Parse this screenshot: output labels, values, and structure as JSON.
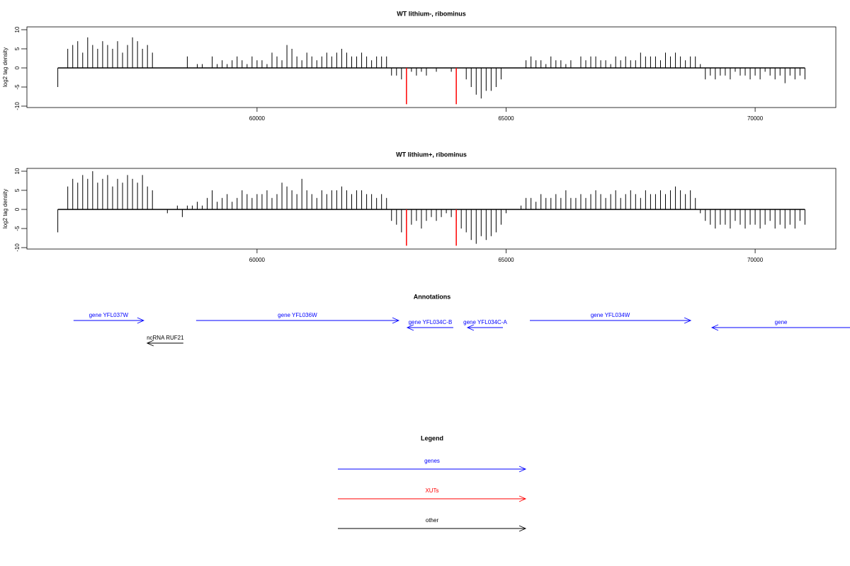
{
  "chart_data": [
    {
      "type": "bar",
      "title": "WT lithium-, ribominus",
      "y_label": "log2 tag density",
      "xlim": [
        55380,
        71620
      ],
      "ylim": [
        -10,
        10
      ],
      "xticks": [
        60000,
        65000,
        70000
      ],
      "yticks": [
        -10,
        -5,
        0,
        5,
        10
      ],
      "series": [
        {
          "color": "#000000",
          "x": [
            56000,
            56100,
            56200,
            56300,
            56400,
            56500,
            56600,
            56700,
            56800,
            56900,
            57000,
            57100,
            57200,
            57300,
            57400,
            57500,
            57600,
            57700,
            57800,
            57900,
            58000,
            58100,
            58200,
            58300,
            58400,
            58500,
            58600,
            58700,
            58800,
            58900,
            59000,
            59100,
            59200,
            59300,
            59400,
            59500,
            59600,
            59700,
            59800,
            59900,
            60000,
            60100,
            60200,
            60300,
            60400,
            60500,
            60600,
            60700,
            60800,
            60900,
            61000,
            61100,
            61200,
            61300,
            61400,
            61500,
            61600,
            61700,
            61800,
            61900,
            62000,
            62100,
            62200,
            62300,
            62400,
            62500,
            62600,
            62700,
            62800,
            62900,
            63000,
            63100,
            63200,
            63300,
            63400,
            63500,
            63600,
            63700,
            63800,
            63900,
            64000,
            64100,
            64200,
            64300,
            64400,
            64500,
            64600,
            64700,
            64800,
            64900,
            65000,
            65100,
            65200,
            65300,
            65400,
            65500,
            65600,
            65700,
            65800,
            65900,
            66000,
            66100,
            66200,
            66300,
            66400,
            66500,
            66600,
            66700,
            66800,
            66900,
            67000,
            67100,
            67200,
            67300,
            67400,
            67500,
            67600,
            67700,
            67800,
            67900,
            68000,
            68100,
            68200,
            68300,
            68400,
            68500,
            68600,
            68700,
            68800,
            68900,
            69000,
            69100,
            69200,
            69300,
            69400,
            69500,
            69600,
            69700,
            69800,
            69900,
            70000,
            70100,
            70200,
            70300,
            70400,
            70500,
            70600,
            70700,
            70800,
            70900,
            71000
          ],
          "values": [
            -5,
            0,
            5,
            6,
            7,
            4,
            8,
            6,
            5,
            7,
            6,
            5,
            7,
            4,
            6,
            8,
            7,
            5,
            6,
            4,
            0,
            0,
            0,
            0,
            0,
            0,
            3,
            0,
            1,
            1,
            0,
            3,
            1,
            2,
            1,
            2,
            3,
            2,
            1,
            3,
            2,
            2,
            1,
            4,
            3,
            2,
            6,
            5,
            3,
            2,
            4,
            3,
            2,
            3,
            4,
            3,
            4,
            5,
            4,
            3,
            3,
            4,
            3,
            2,
            3,
            3,
            3,
            -2,
            -2,
            -3,
            0,
            -1,
            -2,
            -1,
            -2,
            0,
            -1,
            0,
            0,
            -1,
            0,
            0,
            -3,
            -5,
            -7,
            -8,
            -6,
            -6,
            -5,
            -3,
            0,
            0,
            0,
            0,
            2,
            3,
            2,
            2,
            1,
            3,
            2,
            2,
            1,
            2,
            0,
            3,
            2,
            3,
            3,
            2,
            2,
            1,
            3,
            2,
            3,
            2,
            2,
            4,
            3,
            3,
            3,
            2,
            4,
            3,
            4,
            3,
            2,
            3,
            3,
            1,
            -3,
            -2,
            -3,
            -2,
            -2,
            -3,
            -1,
            -2,
            -2,
            -3,
            -2,
            -3,
            -1,
            -2,
            -3,
            -2,
            -4,
            -2,
            -3,
            -2,
            -3
          ]
        },
        {
          "color": "#ff0000",
          "x": [
            63000,
            64000
          ],
          "values": [
            -9.5,
            -9.5
          ]
        }
      ]
    },
    {
      "type": "bar",
      "title": "WT lithium+, ribominus",
      "y_label": "log2 tag density",
      "xlim": [
        55380,
        71620
      ],
      "ylim": [
        -10,
        10
      ],
      "xticks": [
        60000,
        65000,
        70000
      ],
      "yticks": [
        -10,
        -5,
        0,
        5,
        10
      ],
      "series": [
        {
          "color": "#000000",
          "x": [
            56000,
            56100,
            56200,
            56300,
            56400,
            56500,
            56600,
            56700,
            56800,
            56900,
            57000,
            57100,
            57200,
            57300,
            57400,
            57500,
            57600,
            57700,
            57800,
            57900,
            58000,
            58100,
            58200,
            58300,
            58400,
            58500,
            58600,
            58700,
            58800,
            58900,
            59000,
            59100,
            59200,
            59300,
            59400,
            59500,
            59600,
            59700,
            59800,
            59900,
            60000,
            60100,
            60200,
            60300,
            60400,
            60500,
            60600,
            60700,
            60800,
            60900,
            61000,
            61100,
            61200,
            61300,
            61400,
            61500,
            61600,
            61700,
            61800,
            61900,
            62000,
            62100,
            62200,
            62300,
            62400,
            62500,
            62600,
            62700,
            62800,
            62900,
            63000,
            63100,
            63200,
            63300,
            63400,
            63500,
            63600,
            63700,
            63800,
            63900,
            64000,
            64100,
            64200,
            64300,
            64400,
            64500,
            64600,
            64700,
            64800,
            64900,
            65000,
            65100,
            65200,
            65300,
            65400,
            65500,
            65600,
            65700,
            65800,
            65900,
            66000,
            66100,
            66200,
            66300,
            66400,
            66500,
            66600,
            66700,
            66800,
            66900,
            67000,
            67100,
            67200,
            67300,
            67400,
            67500,
            67600,
            67700,
            67800,
            67900,
            68000,
            68100,
            68200,
            68300,
            68400,
            68500,
            68600,
            68700,
            68800,
            68900,
            69000,
            69100,
            69200,
            69300,
            69400,
            69500,
            69600,
            69700,
            69800,
            69900,
            70000,
            70100,
            70200,
            70300,
            70400,
            70500,
            70600,
            70700,
            70800,
            70900,
            71000
          ],
          "values": [
            -6,
            0,
            6,
            8,
            7,
            9,
            8,
            10,
            7,
            8,
            9,
            6,
            8,
            7,
            9,
            8,
            7,
            9,
            6,
            5,
            0,
            0,
            -1,
            0,
            1,
            -2,
            1,
            1,
            2,
            1,
            3,
            5,
            2,
            3,
            4,
            2,
            3,
            5,
            4,
            3,
            4,
            4,
            5,
            3,
            4,
            7,
            6,
            5,
            4,
            8,
            5,
            4,
            3,
            5,
            4,
            5,
            5,
            6,
            5,
            4,
            5,
            5,
            4,
            4,
            3,
            4,
            3,
            -3,
            -4,
            -6,
            -3,
            -4,
            -3,
            -5,
            -3,
            -2,
            -3,
            -2,
            -1,
            -2,
            -3,
            -5,
            -6,
            -8,
            -9,
            -7,
            -8,
            -7,
            -6,
            -4,
            -1,
            0,
            0,
            1,
            3,
            3,
            2,
            4,
            3,
            3,
            4,
            3,
            5,
            3,
            3,
            4,
            3,
            4,
            5,
            4,
            3,
            4,
            5,
            3,
            4,
            5,
            4,
            3,
            5,
            4,
            4,
            5,
            4,
            5,
            6,
            5,
            4,
            5,
            3,
            -1,
            -3,
            -4,
            -5,
            -4,
            -4,
            -5,
            -3,
            -4,
            -5,
            -4,
            -4,
            -5,
            -4,
            -3,
            -5,
            -4,
            -5,
            -4,
            -5,
            -3,
            -4
          ]
        },
        {
          "color": "#ff0000",
          "x": [
            63000,
            64000
          ],
          "values": [
            -9.5,
            -9.5
          ]
        }
      ]
    }
  ],
  "annotations": {
    "title": "Annotations",
    "items": [
      {
        "label": "gene YFL037W",
        "color": "#0000ff",
        "start": 56316,
        "end": 57724
      },
      {
        "label": "gene YFL036W",
        "color": "#0000ff",
        "start": 58777,
        "end": 62845
      },
      {
        "label": "gene YFL034C-B",
        "color": "#0000ff",
        "start": 63940,
        "end": 63016
      },
      {
        "label": "gene YFL034C-A",
        "color": "#0000ff",
        "start": 64936,
        "end": 64225
      },
      {
        "label": "gene YFL034W",
        "color": "#0000ff",
        "start": 65477,
        "end": 68706
      },
      {
        "label": "gene",
        "color": "#0000ff",
        "start": 71906,
        "end": 69132
      },
      {
        "label": "ncRNA RUF21",
        "color": "#000000",
        "start": 58520,
        "end": 57795
      }
    ]
  },
  "legend": {
    "title": "Legend",
    "items": [
      {
        "name": "genes",
        "color": "#0000ff"
      },
      {
        "name": "XUTs",
        "color": "#ff0000"
      },
      {
        "name": "other",
        "color": "#000000"
      }
    ]
  }
}
